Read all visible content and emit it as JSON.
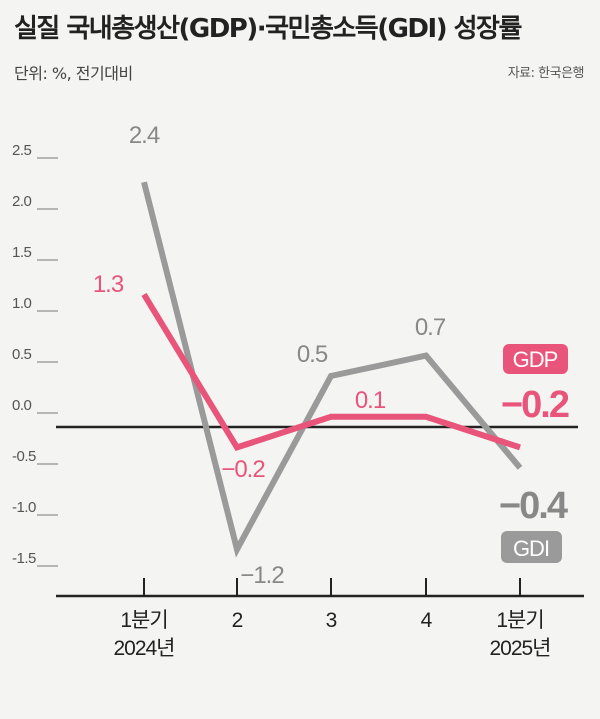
{
  "header": {
    "title": "실질 국내총생산(GDP)·국민총소득(GDI) 성장률",
    "unit": "단위: %, 전기대비",
    "source": "자료: 한국은행"
  },
  "chart_data": {
    "type": "line",
    "title": "실질 국내총생산(GDP)·국민총소득(GDI) 성장률",
    "ylabel": "",
    "xlabel": "",
    "ylim": [
      -1.5,
      2.5
    ],
    "yticks": [
      "2.5",
      "2.0",
      "1.5",
      "1.0",
      "0.5",
      "0.0",
      "-0.5",
      "-1.0",
      "-1.5"
    ],
    "categories": [
      "1분기\n2024년",
      "2",
      "3",
      "4",
      "1분기\n2025년"
    ],
    "series": [
      {
        "name": "GDP",
        "values": [
          1.3,
          -0.2,
          0.1,
          0.1,
          -0.2
        ],
        "labels": [
          "1.3",
          "−0.2",
          "",
          "0.1",
          "−0.2"
        ],
        "color": "#e8547a"
      },
      {
        "name": "GDI",
        "values": [
          2.4,
          -1.2,
          0.5,
          0.7,
          -0.4
        ],
        "labels": [
          "2.4",
          "−1.2",
          "0.5",
          "0.7",
          "−0.4"
        ],
        "color": "#9a9a9a"
      }
    ],
    "grid": false,
    "legend": "inline-right"
  },
  "colors": {
    "gdp": "#e8547a",
    "gdi": "#9a9a9a",
    "axis": "#222222"
  }
}
